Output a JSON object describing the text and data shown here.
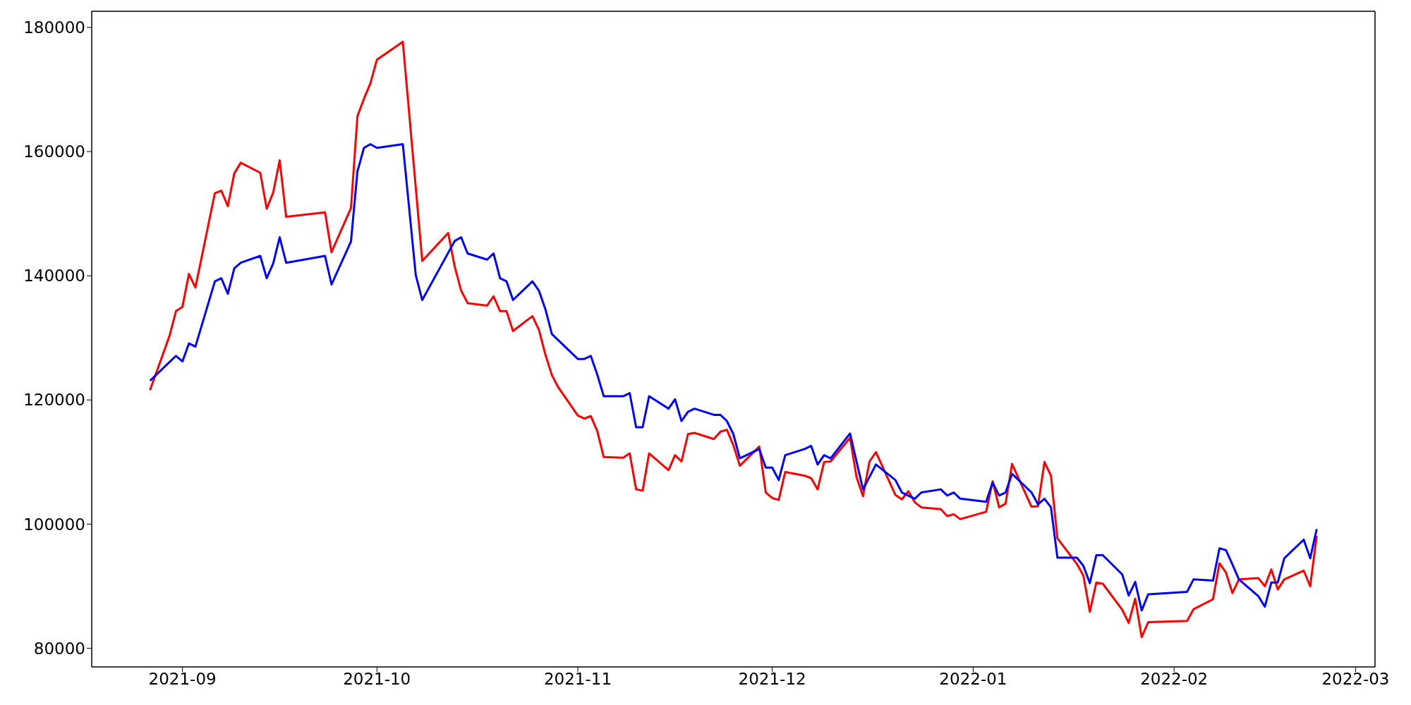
{
  "chart_data": {
    "type": "line",
    "xlim": [
      "2021-08-18",
      "2022-03-04"
    ],
    "xticks": [
      "2021-09",
      "2021-10",
      "2021-11",
      "2021-12",
      "2022-01",
      "2022-02",
      "2022-03"
    ],
    "ylim": [
      77000,
      182600
    ],
    "yticks": [
      80000,
      100000,
      120000,
      140000,
      160000,
      180000
    ],
    "series": [
      {
        "color": "#ff0000",
        "x": [
          "2021-08-27",
          "2021-08-30",
          "2021-08-31",
          "2021-09-01",
          "2021-09-02",
          "2021-09-03",
          "2021-09-06",
          "2021-09-07",
          "2021-09-08",
          "2021-09-09",
          "2021-09-10",
          "2021-09-13",
          "2021-09-14",
          "2021-09-15",
          "2021-09-16",
          "2021-09-17",
          "2021-09-23",
          "2021-09-24",
          "2021-09-27",
          "2021-09-28",
          "2021-09-29",
          "2021-09-30",
          "2021-10-01",
          "2021-10-05",
          "2021-10-08",
          "2021-10-12",
          "2021-10-13",
          "2021-10-14",
          "2021-10-15",
          "2021-10-18",
          "2021-10-19",
          "2021-10-20",
          "2021-10-21",
          "2021-10-22",
          "2021-10-25",
          "2021-10-26",
          "2021-10-27",
          "2021-10-28",
          "2021-10-29",
          "2021-11-01",
          "2021-11-02",
          "2021-11-03",
          "2021-11-04",
          "2021-11-05",
          "2021-11-08",
          "2021-11-09",
          "2021-11-10",
          "2021-11-11",
          "2021-11-12",
          "2021-11-15",
          "2021-11-16",
          "2021-11-17",
          "2021-11-18",
          "2021-11-19",
          "2021-11-22",
          "2021-11-23",
          "2021-11-24",
          "2021-11-25",
          "2021-11-26",
          "2021-11-29",
          "2021-11-30",
          "2021-12-01",
          "2021-12-02",
          "2021-12-03",
          "2021-12-06",
          "2021-12-07",
          "2021-12-08",
          "2021-12-09",
          "2021-12-10",
          "2021-12-13",
          "2021-12-14",
          "2021-12-15",
          "2021-12-16",
          "2021-12-17",
          "2021-12-20",
          "2021-12-21",
          "2021-12-22",
          "2021-12-23",
          "2021-12-24",
          "2021-12-27",
          "2021-12-28",
          "2021-12-29",
          "2021-12-30",
          "2022-01-03",
          "2022-01-04",
          "2022-01-05",
          "2022-01-06",
          "2022-01-07",
          "2022-01-10",
          "2022-01-11",
          "2022-01-12",
          "2022-01-13",
          "2022-01-14",
          "2022-01-17",
          "2022-01-18",
          "2022-01-19",
          "2022-01-20",
          "2022-01-21",
          "2022-01-24",
          "2022-01-25",
          "2022-01-26",
          "2022-01-27",
          "2022-01-28",
          "2022-02-03",
          "2022-02-04",
          "2022-02-07",
          "2022-02-08",
          "2022-02-09",
          "2022-02-10",
          "2022-02-11",
          "2022-02-14",
          "2022-02-15",
          "2022-02-16",
          "2022-02-17",
          "2022-02-18",
          "2022-02-21",
          "2022-02-22",
          "2022-02-23"
        ],
        "values": [
          121600,
          130300,
          134300,
          135000,
          140300,
          138100,
          153300,
          153700,
          151200,
          156500,
          158200,
          156600,
          150800,
          153400,
          158600,
          149500,
          150200,
          143800,
          150900,
          165700,
          168500,
          171000,
          174800,
          177700,
          142400,
          146900,
          141500,
          137600,
          135600,
          135200,
          136700,
          134300,
          134300,
          131100,
          133500,
          131300,
          127300,
          124000,
          122000,
          117500,
          117000,
          117400,
          115000,
          110800,
          110700,
          111400,
          105600,
          105400,
          111400,
          108700,
          111100,
          110100,
          114500,
          114700,
          113700,
          114900,
          115200,
          112700,
          109400,
          112500,
          105100,
          104200,
          103900,
          108400,
          107800,
          107400,
          105600,
          110000,
          110100,
          113900,
          107600,
          104500,
          110100,
          111600,
          104700,
          104000,
          105300,
          103500,
          102700,
          102400,
          101300,
          101600,
          100800,
          102000,
          106900,
          102700,
          103300,
          109700,
          102800,
          102900,
          110000,
          107800,
          97700,
          93600,
          91700,
          85900,
          90600,
          90400,
          86200,
          84100,
          88000,
          81800,
          84200,
          84400,
          86300,
          87900,
          93700,
          92200,
          88900,
          91100,
          91300,
          90000,
          92700,
          89500,
          91100,
          92500,
          90000,
          98100
        ]
      },
      {
        "color": "#0000ff",
        "x": [
          "2021-08-27",
          "2021-08-31",
          "2021-09-01",
          "2021-09-02",
          "2021-09-03",
          "2021-09-06",
          "2021-09-07",
          "2021-09-08",
          "2021-09-09",
          "2021-09-10",
          "2021-09-13",
          "2021-09-14",
          "2021-09-15",
          "2021-09-16",
          "2021-09-17",
          "2021-09-23",
          "2021-09-24",
          "2021-09-27",
          "2021-09-28",
          "2021-09-29",
          "2021-09-30",
          "2021-10-01",
          "2021-10-05",
          "2021-10-07",
          "2021-10-08",
          "2021-10-13",
          "2021-10-14",
          "2021-10-15",
          "2021-10-18",
          "2021-10-19",
          "2021-10-20",
          "2021-10-21",
          "2021-10-22",
          "2021-10-25",
          "2021-10-26",
          "2021-10-27",
          "2021-10-28",
          "2021-11-01",
          "2021-11-02",
          "2021-11-03",
          "2021-11-04",
          "2021-11-05",
          "2021-11-08",
          "2021-11-09",
          "2021-11-10",
          "2021-11-11",
          "2021-11-12",
          "2021-11-15",
          "2021-11-16",
          "2021-11-17",
          "2021-11-18",
          "2021-11-19",
          "2021-11-22",
          "2021-11-23",
          "2021-11-24",
          "2021-11-25",
          "2021-11-26",
          "2021-11-29",
          "2021-11-30",
          "2021-12-01",
          "2021-12-02",
          "2021-12-03",
          "2021-12-06",
          "2021-12-07",
          "2021-12-08",
          "2021-12-09",
          "2021-12-10",
          "2021-12-13",
          "2021-12-15",
          "2021-12-17",
          "2021-12-20",
          "2021-12-21",
          "2021-12-23",
          "2021-12-24",
          "2021-12-27",
          "2021-12-28",
          "2021-12-29",
          "2021-12-30",
          "2022-01-03",
          "2022-01-04",
          "2022-01-05",
          "2022-01-06",
          "2022-01-07",
          "2022-01-10",
          "2022-01-11",
          "2022-01-12",
          "2022-01-13",
          "2022-01-14",
          "2022-01-17",
          "2022-01-18",
          "2022-01-19",
          "2022-01-20",
          "2022-01-21",
          "2022-01-24",
          "2022-01-25",
          "2022-01-26",
          "2022-01-27",
          "2022-01-28",
          "2022-02-03",
          "2022-02-04",
          "2022-02-07",
          "2022-02-08",
          "2022-02-09",
          "2022-02-10",
          "2022-02-11",
          "2022-02-14",
          "2022-02-15",
          "2022-02-16",
          "2022-02-17",
          "2022-02-18",
          "2022-02-21",
          "2022-02-22",
          "2022-02-23"
        ],
        "values": [
          123100,
          127100,
          126200,
          129100,
          128600,
          139100,
          139600,
          137100,
          141200,
          142100,
          143200,
          139600,
          142000,
          146200,
          142100,
          143200,
          138600,
          145500,
          156800,
          160600,
          161200,
          160600,
          161200,
          140100,
          136100,
          145600,
          146200,
          143600,
          142600,
          143600,
          139600,
          139100,
          136100,
          139100,
          137600,
          134600,
          130600,
          126600,
          126600,
          127100,
          124100,
          120600,
          120600,
          121100,
          115600,
          115600,
          120600,
          118600,
          120100,
          116600,
          118100,
          118600,
          117600,
          117600,
          116600,
          114500,
          110600,
          112100,
          109100,
          109100,
          107100,
          111100,
          112100,
          112600,
          109600,
          111100,
          110600,
          114600,
          105600,
          109600,
          107100,
          105100,
          104100,
          105100,
          105600,
          104600,
          105100,
          104100,
          103600,
          106700,
          104600,
          105100,
          108100,
          105100,
          103200,
          104100,
          102700,
          94600,
          94600,
          93300,
          90500,
          95000,
          95000,
          91900,
          88500,
          90700,
          86100,
          88700,
          89100,
          91100,
          90900,
          96100,
          95800,
          93500,
          91100,
          88400,
          86700,
          90600,
          90600,
          94500,
          97500,
          94500,
          99200
        ]
      }
    ]
  }
}
